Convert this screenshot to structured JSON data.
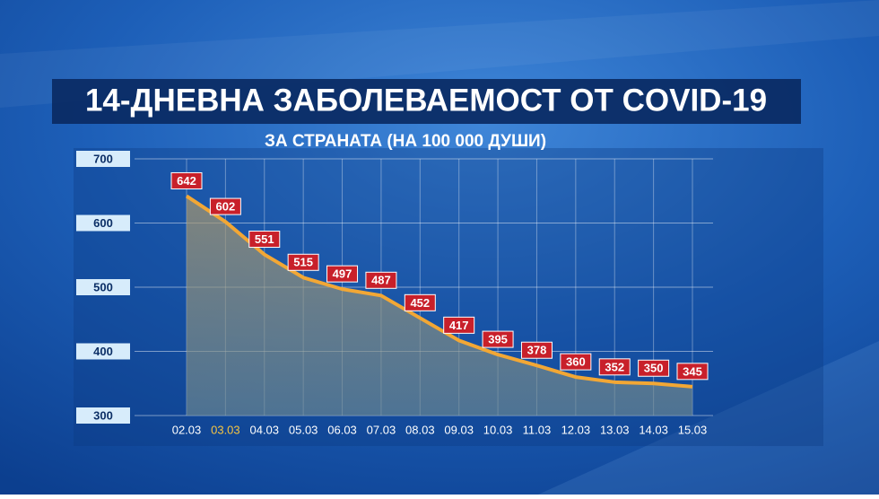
{
  "chart_data": {
    "type": "area",
    "title": "14-ДНЕВНА ЗАБОЛЕВАЕМОСТ ОТ COVID-19",
    "subtitle": "ЗА СТРАНАТА (НА 100 000 ДУШИ)",
    "categories": [
      "02.03",
      "03.03",
      "04.03",
      "05.03",
      "06.03",
      "07.03",
      "08.03",
      "09.03",
      "10.03",
      "11.03",
      "12.03",
      "13.03",
      "14.03",
      "15.03"
    ],
    "values": [
      642,
      602,
      551,
      515,
      497,
      487,
      452,
      417,
      395,
      378,
      360,
      352,
      350,
      345
    ],
    "color": "#f2a735",
    "label_color": "#c8202a",
    "highlight": 1,
    "highlight_color": "#f5c542",
    "ylim": [
      300,
      700
    ],
    "yticks": [
      300,
      400,
      500,
      600,
      700
    ],
    "grid": true
  }
}
